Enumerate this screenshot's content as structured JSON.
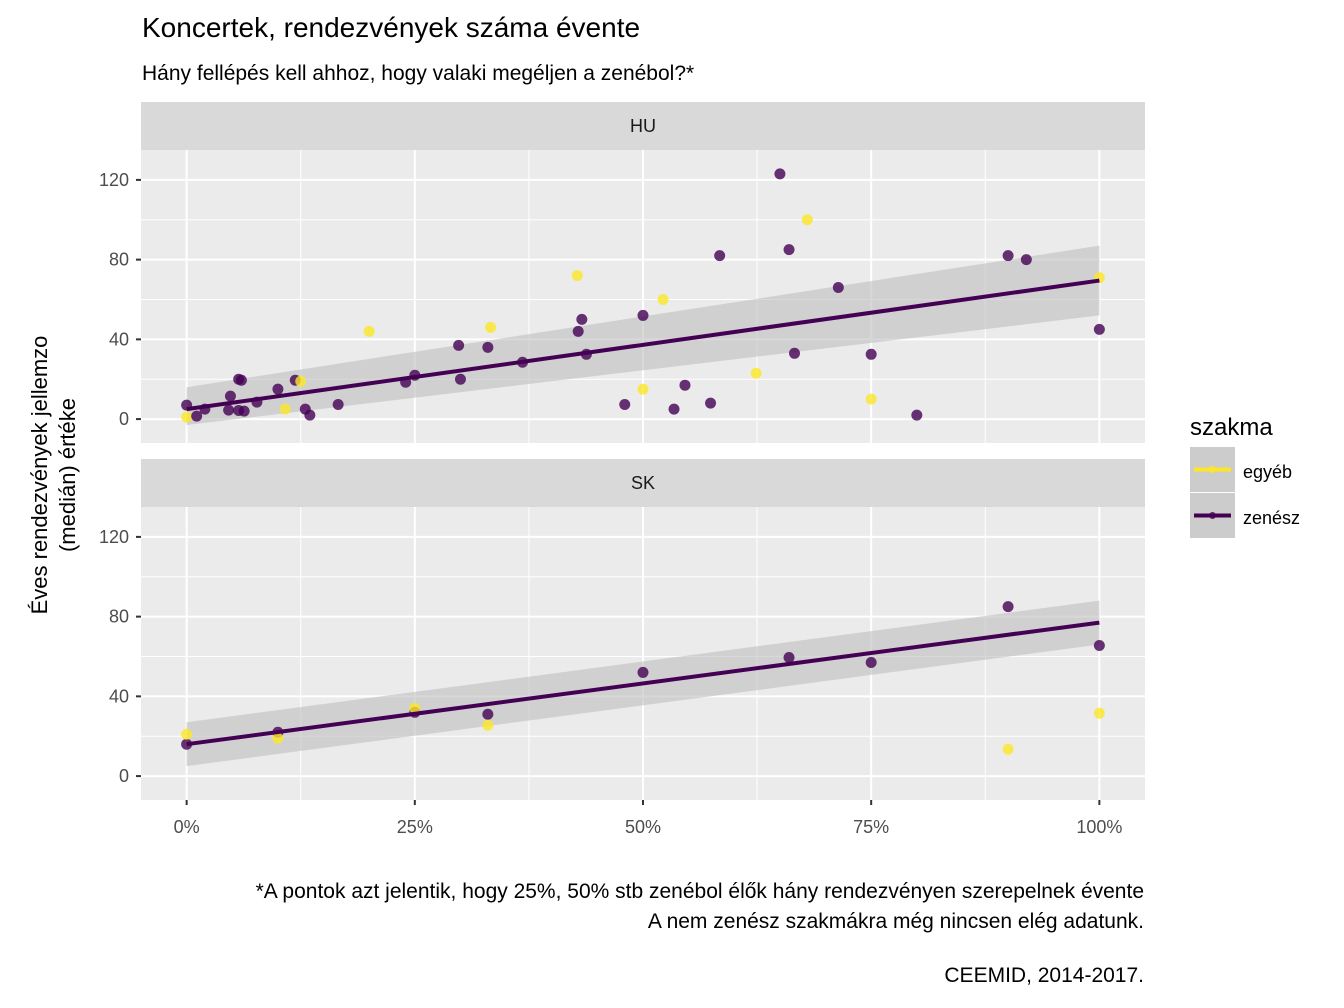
{
  "chart_data": {
    "type": "scatter",
    "title": "Koncertek, rendezvények száma évente",
    "subtitle": "Hány fellépés kell ahhoz, hogy valaki megéljen a zenébol?*",
    "xlabel": "",
    "ylabel_lines": [
      "Éves rendezvények jellemzo",
      "(medián) értéke"
    ],
    "xlim": [
      -0.05,
      1.05
    ],
    "ylim": [
      -12,
      135
    ],
    "x_ticks": [
      0,
      0.25,
      0.5,
      0.75,
      1.0
    ],
    "x_tick_labels": [
      "0%",
      "25%",
      "50%",
      "75%",
      "100%"
    ],
    "y_ticks": [
      0,
      40,
      80,
      120
    ],
    "y_tick_labels": [
      "0",
      "40",
      "80",
      "120"
    ],
    "grid": true,
    "legend": {
      "title": "szakma",
      "position": "right",
      "entries": [
        {
          "name": "egyéb",
          "color": "#FDE725"
        },
        {
          "name": "zenész",
          "color": "#440154"
        }
      ]
    },
    "facets": [
      {
        "label": "HU",
        "points": [
          {
            "x": 0.0,
            "y": 7,
            "group": "zenész"
          },
          {
            "x": 0.0,
            "y": 1,
            "group": "egyéb"
          },
          {
            "x": 0.011,
            "y": 1.5,
            "group": "zenész"
          },
          {
            "x": 0.02,
            "y": 5,
            "group": "zenész"
          },
          {
            "x": 0.046,
            "y": 4.5,
            "group": "zenész"
          },
          {
            "x": 0.048,
            "y": 11.5,
            "group": "zenész"
          },
          {
            "x": 0.057,
            "y": 4.3,
            "group": "zenész"
          },
          {
            "x": 0.063,
            "y": 4,
            "group": "zenész"
          },
          {
            "x": 0.057,
            "y": 20,
            "group": "zenész"
          },
          {
            "x": 0.06,
            "y": 19.5,
            "group": "zenész"
          },
          {
            "x": 0.077,
            "y": 8.5,
            "group": "zenész"
          },
          {
            "x": 0.1,
            "y": 15,
            "group": "zenész"
          },
          {
            "x": 0.108,
            "y": 5,
            "group": "egyéb"
          },
          {
            "x": 0.119,
            "y": 19.5,
            "group": "zenész"
          },
          {
            "x": 0.125,
            "y": 19,
            "group": "egyéb"
          },
          {
            "x": 0.13,
            "y": 5,
            "group": "zenész"
          },
          {
            "x": 0.135,
            "y": 2,
            "group": "zenész"
          },
          {
            "x": 0.166,
            "y": 7.3,
            "group": "zenész"
          },
          {
            "x": 0.2,
            "y": 44,
            "group": "egyéb"
          },
          {
            "x": 0.24,
            "y": 18.5,
            "group": "zenész"
          },
          {
            "x": 0.25,
            "y": 22,
            "group": "zenész"
          },
          {
            "x": 0.298,
            "y": 37,
            "group": "zenész"
          },
          {
            "x": 0.3,
            "y": 20,
            "group": "zenész"
          },
          {
            "x": 0.33,
            "y": 36,
            "group": "zenész"
          },
          {
            "x": 0.333,
            "y": 46,
            "group": "egyéb"
          },
          {
            "x": 0.368,
            "y": 28.5,
            "group": "zenész"
          },
          {
            "x": 0.428,
            "y": 72,
            "group": "egyéb"
          },
          {
            "x": 0.429,
            "y": 44,
            "group": "zenész"
          },
          {
            "x": 0.433,
            "y": 50,
            "group": "zenész"
          },
          {
            "x": 0.438,
            "y": 32.5,
            "group": "zenész"
          },
          {
            "x": 0.48,
            "y": 7.3,
            "group": "zenész"
          },
          {
            "x": 0.5,
            "y": 52,
            "group": "zenész"
          },
          {
            "x": 0.5,
            "y": 15,
            "group": "egyéb"
          },
          {
            "x": 0.522,
            "y": 60,
            "group": "egyéb"
          },
          {
            "x": 0.534,
            "y": 5,
            "group": "zenész"
          },
          {
            "x": 0.546,
            "y": 17,
            "group": "zenész"
          },
          {
            "x": 0.574,
            "y": 8,
            "group": "zenész"
          },
          {
            "x": 0.584,
            "y": 82,
            "group": "zenész"
          },
          {
            "x": 0.624,
            "y": 23,
            "group": "egyéb"
          },
          {
            "x": 0.65,
            "y": 123,
            "group": "zenész"
          },
          {
            "x": 0.66,
            "y": 85,
            "group": "zenész"
          },
          {
            "x": 0.666,
            "y": 33,
            "group": "zenész"
          },
          {
            "x": 0.68,
            "y": 100,
            "group": "egyéb"
          },
          {
            "x": 0.714,
            "y": 66,
            "group": "zenész"
          },
          {
            "x": 0.75,
            "y": 32.5,
            "group": "zenész"
          },
          {
            "x": 0.75,
            "y": 10,
            "group": "egyéb"
          },
          {
            "x": 0.8,
            "y": 2,
            "group": "zenész"
          },
          {
            "x": 0.9,
            "y": 82,
            "group": "zenész"
          },
          {
            "x": 0.92,
            "y": 80,
            "group": "zenész"
          },
          {
            "x": 1.0,
            "y": 71,
            "group": "egyéb"
          },
          {
            "x": 1.0,
            "y": 45,
            "group": "zenész"
          }
        ],
        "trend": {
          "group": "zenész",
          "x": [
            0,
            1
          ],
          "y": [
            5,
            69.5
          ],
          "ci_lower": [
            -3,
            52
          ],
          "ci_upper": [
            16,
            87
          ]
        }
      },
      {
        "label": "SK",
        "points": [
          {
            "x": 0.0,
            "y": 16,
            "group": "zenész"
          },
          {
            "x": 0.0,
            "y": 21,
            "group": "egyéb"
          },
          {
            "x": 0.1,
            "y": 22,
            "group": "zenész"
          },
          {
            "x": 0.1,
            "y": 19,
            "group": "egyéb"
          },
          {
            "x": 0.25,
            "y": 32,
            "group": "zenész"
          },
          {
            "x": 0.25,
            "y": 34,
            "group": "egyéb"
          },
          {
            "x": 0.33,
            "y": 31,
            "group": "zenész"
          },
          {
            "x": 0.33,
            "y": 25.5,
            "group": "egyéb"
          },
          {
            "x": 0.5,
            "y": 52,
            "group": "zenész"
          },
          {
            "x": 0.66,
            "y": 59.5,
            "group": "zenész"
          },
          {
            "x": 0.75,
            "y": 57,
            "group": "zenész"
          },
          {
            "x": 0.9,
            "y": 85,
            "group": "zenész"
          },
          {
            "x": 0.9,
            "y": 13.5,
            "group": "egyéb"
          },
          {
            "x": 1.0,
            "y": 65.5,
            "group": "zenész"
          },
          {
            "x": 1.0,
            "y": 31.5,
            "group": "egyéb"
          }
        ],
        "trend": {
          "group": "zenész",
          "x": [
            0,
            1
          ],
          "y": [
            16,
            77
          ],
          "ci_lower": [
            5,
            66
          ],
          "ci_upper": [
            27,
            88
          ]
        }
      }
    ]
  },
  "captions": [
    "*A pontok azt jelentik, hogy 25%, 50% stb zenébol élők hány rendezvényen szerepelnek évente",
    "A nem zenész szakmákra még nincsen elég adatunk.",
    "CEEMID, 2014-2017."
  ],
  "colors": {
    "panel_bg": "#EBEBEB",
    "strip_bg": "#D9D9D9",
    "grid": "#FFFFFF",
    "ribbon": "#BEBEBE",
    "trend": "#440154"
  }
}
